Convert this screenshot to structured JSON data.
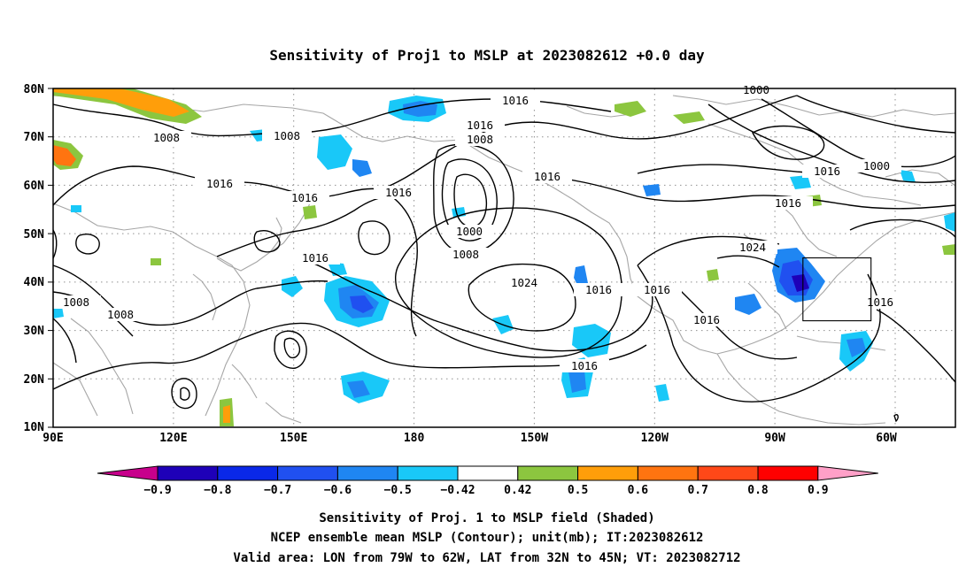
{
  "title": "Sensitivity of Proj1 to MSLP at 2023082612 +0.0 day",
  "map": {
    "lat_labels": [
      "80N",
      "70N",
      "60N",
      "50N",
      "40N",
      "30N",
      "20N",
      "10N"
    ],
    "lon_labels": [
      "90E",
      "120E",
      "150E",
      "180",
      "150W",
      "120W",
      "90W",
      "60W"
    ],
    "contour_interval_mb": 8,
    "contour_labels": [
      "1016",
      "1016",
      "1008",
      "1008",
      "1016",
      "1016",
      "1016",
      "1008",
      "1016",
      "1000",
      "1008",
      "1016",
      "1024",
      "1016",
      "1016",
      "1016",
      "1016",
      "1008",
      "1008",
      "1000",
      "1016",
      "1000",
      "1024",
      "1016"
    ],
    "valid_area": {
      "lon_min": -79,
      "lon_max": -62,
      "lat_min": 32,
      "lat_max": 45
    }
  },
  "colorbar": {
    "labels": [
      "-0.9",
      "-0.8",
      "-0.7",
      "-0.6",
      "-0.5",
      "-0.42",
      "0.42",
      "0.5",
      "0.6",
      "0.7",
      "0.8",
      "0.9"
    ],
    "colors": [
      "#1e00b8",
      "#0a28e8",
      "#2050f0",
      "#1f86f2",
      "#19c8f8",
      "#ffffff",
      "#8cc63f",
      "#ff9e0a",
      "#ff7410",
      "#ff4818",
      "#ff0000"
    ],
    "low_end_color": "#c8008c",
    "high_end_color": "#ffa0c8"
  },
  "footer": {
    "line1": "Sensitivity of Proj. 1 to MSLP field (Shaded)",
    "line2": "NCEP ensemble mean MSLP (Contour); unit(mb); IT:2023082612",
    "line3": "Valid area: LON from 79W to 62W, LAT from 32N to 45N; VT: 2023082712"
  }
}
